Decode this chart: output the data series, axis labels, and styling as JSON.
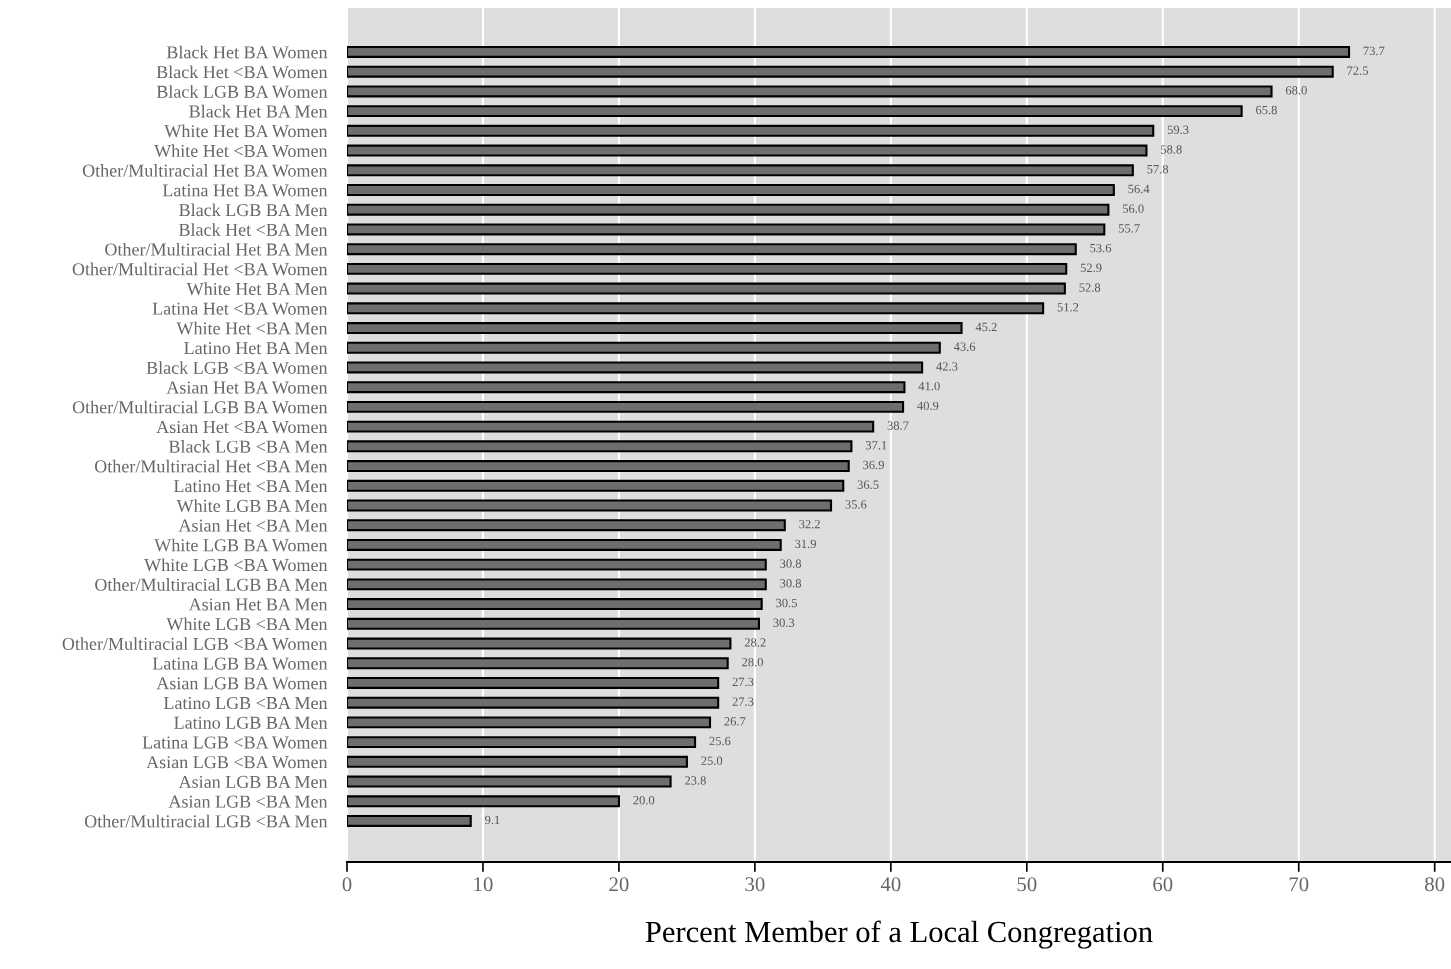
{
  "chart_data": {
    "type": "bar",
    "orientation": "horizontal",
    "xlabel": "Percent Member of a Local Congregation",
    "categories": [
      "Black Het BA Women",
      "Black Het <BA Women",
      "Black LGB BA Women",
      "Black Het BA Men",
      "White Het BA Women",
      "White Het <BA Women",
      "Other/Multiracial Het BA Women",
      "Latina Het BA Women",
      "Black LGB BA Men",
      "Black Het <BA Men",
      "Other/Multiracial Het BA Men",
      "Other/Multiracial Het <BA Women",
      "White Het BA Men",
      "Latina Het <BA Women",
      "White Het <BA Men",
      "Latino Het BA Men",
      "Black LGB <BA Women",
      "Asian Het BA Women",
      "Other/Multiracial LGB BA Women",
      "Asian Het <BA Women",
      "Black LGB <BA Men",
      "Other/Multiracial Het <BA Men",
      "Latino Het <BA Men",
      "White LGB BA Men",
      "Asian Het <BA Men",
      "White LGB BA Women",
      "White LGB <BA Women",
      "Other/Multiracial LGB BA Men",
      "Asian Het BA Men",
      "White LGB <BA Men",
      "Other/Multiracial LGB <BA Women",
      "Latina LGB BA Women",
      "Asian LGB BA Women",
      "Latino LGB <BA Men",
      "Latino LGB BA Men",
      "Latina LGB <BA Women",
      "Asian LGB <BA Women",
      "Asian LGB BA Men",
      "Asian LGB <BA Men",
      "Other/Multiracial LGB <BA Men"
    ],
    "values": [
      73.7,
      72.5,
      68.0,
      65.8,
      59.3,
      58.8,
      57.8,
      56.4,
      56.0,
      55.7,
      53.6,
      52.9,
      52.8,
      51.2,
      45.2,
      43.6,
      42.3,
      41.0,
      40.9,
      38.7,
      37.1,
      36.9,
      36.5,
      35.6,
      32.2,
      31.9,
      30.8,
      30.8,
      30.5,
      30.3,
      28.2,
      28.0,
      27.3,
      27.3,
      26.7,
      25.6,
      25.0,
      23.8,
      20.0,
      9.1
    ],
    "value_labels": [
      "73.7",
      "72.5",
      "68.0",
      "65.8",
      "59.3",
      "58.8",
      "57.8",
      "56.4",
      "56.0",
      "55.7",
      "53.6",
      "52.9",
      "52.8",
      "51.2",
      "45.2",
      "43.6",
      "42.3",
      "41.0",
      "40.9",
      "38.7",
      "37.1",
      "36.9",
      "36.5",
      "35.6",
      "32.2",
      "31.9",
      "30.8",
      "30.8",
      "30.5",
      "30.3",
      "28.2",
      "28.0",
      "27.3",
      "27.3",
      "26.7",
      "25.6",
      "25.0",
      "23.8",
      "20.0",
      "9.1"
    ],
    "color": "#6e6e6e",
    "xlim": [
      0,
      81.2
    ],
    "xticks": [
      0,
      10,
      20,
      30,
      40,
      50,
      60,
      70,
      80
    ],
    "grid": "x"
  }
}
